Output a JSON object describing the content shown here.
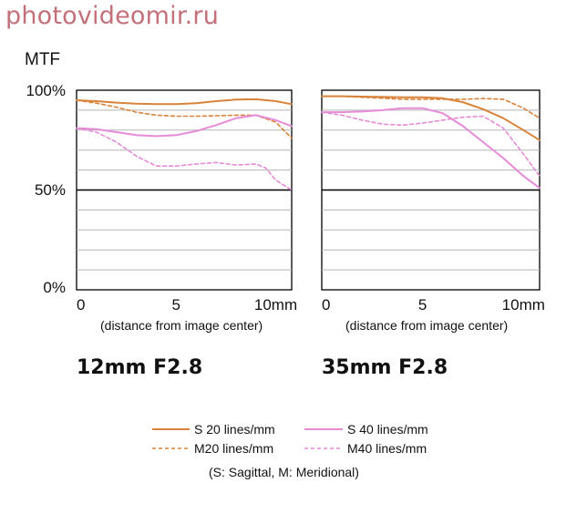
{
  "watermark": "photovideomir.ru",
  "ylabel": "MTF",
  "y_ticks": [
    "0%",
    "50%",
    "100%"
  ],
  "x_ticks": [
    "0",
    "5",
    "10mm"
  ],
  "xlabel": "(distance from image center)",
  "legend_note": "(S: Sagittal, M: Meridional)",
  "colors": {
    "s20": "#d9833a",
    "m20": "#d9833a",
    "s40": "#e58bd8",
    "m40": "#e58bd8"
  },
  "chart_data": [
    {
      "type": "line",
      "title": "12mm F2.8",
      "xlim": [
        0,
        10.8
      ],
      "ylim": [
        0,
        100
      ],
      "grid": true,
      "series": [
        {
          "name": "S 20 lines/mm",
          "style": "solid",
          "color": "#d9833a",
          "x": [
            0,
            1,
            2,
            3,
            4,
            5,
            6,
            7,
            8,
            9,
            10,
            10.8
          ],
          "y": [
            95,
            94.5,
            93.8,
            93.3,
            93,
            93,
            93.5,
            94.5,
            95.3,
            95.5,
            94.5,
            93
          ]
        },
        {
          "name": "M20 lines/mm",
          "style": "dashed",
          "color": "#d9833a",
          "x": [
            0,
            1,
            2,
            3,
            4,
            5,
            6,
            7,
            8,
            9,
            10,
            10.8
          ],
          "y": [
            95,
            93.5,
            91.5,
            89,
            87.5,
            87,
            87,
            87.2,
            87.5,
            87.5,
            84,
            76
          ]
        },
        {
          "name": "S 40 lines/mm",
          "style": "solid",
          "color": "#e58bd8",
          "x": [
            0,
            1,
            2,
            3,
            4,
            5,
            6,
            7,
            8,
            9,
            10,
            10.8
          ],
          "y": [
            81,
            80.5,
            79,
            77.5,
            77,
            77.5,
            79.5,
            82.5,
            86,
            87.5,
            85,
            82
          ]
        },
        {
          "name": "M40 lines/mm",
          "style": "dashed",
          "color": "#e58bd8",
          "x": [
            0,
            1,
            2,
            3,
            4,
            5,
            6,
            7,
            8,
            9,
            9.5,
            10,
            10.8
          ],
          "y": [
            81,
            79,
            74,
            67,
            62,
            62,
            63,
            63.8,
            62.5,
            63,
            61,
            55,
            50
          ]
        }
      ]
    },
    {
      "type": "line",
      "title": "35mm F2.8",
      "xlim": [
        0,
        10.8
      ],
      "ylim": [
        0,
        100
      ],
      "grid": true,
      "series": [
        {
          "name": "S 20 lines/mm",
          "style": "solid",
          "color": "#d9833a",
          "x": [
            0,
            1,
            2,
            3,
            4,
            5,
            6,
            7,
            8,
            9,
            10,
            10.8
          ],
          "y": [
            97,
            97,
            96.8,
            96.6,
            96.5,
            96.5,
            96,
            94,
            90.5,
            86,
            80,
            75
          ]
        },
        {
          "name": "M20 lines/mm",
          "style": "dashed",
          "color": "#d9833a",
          "x": [
            0,
            1,
            2,
            3,
            4,
            5,
            6,
            7,
            8,
            9,
            10,
            10.8
          ],
          "y": [
            97,
            97,
            96.5,
            96,
            95.5,
            95.5,
            95.5,
            95.5,
            95.8,
            95.5,
            91,
            86
          ]
        },
        {
          "name": "S 40 lines/mm",
          "style": "solid",
          "color": "#e58bd8",
          "x": [
            0,
            1,
            2,
            3,
            4,
            5,
            6,
            7,
            8,
            9,
            10,
            10.8
          ],
          "y": [
            89,
            89,
            89.3,
            90,
            91,
            91,
            88.5,
            82,
            74,
            66,
            57,
            51
          ]
        },
        {
          "name": "M40 lines/mm",
          "style": "dashed",
          "color": "#e58bd8",
          "x": [
            0,
            1,
            2,
            3,
            4,
            5,
            6,
            7,
            8,
            9,
            10,
            10.8
          ],
          "y": [
            89,
            87.5,
            85,
            83,
            82.5,
            83.5,
            85,
            86.5,
            87,
            81,
            68,
            57
          ]
        }
      ]
    }
  ]
}
